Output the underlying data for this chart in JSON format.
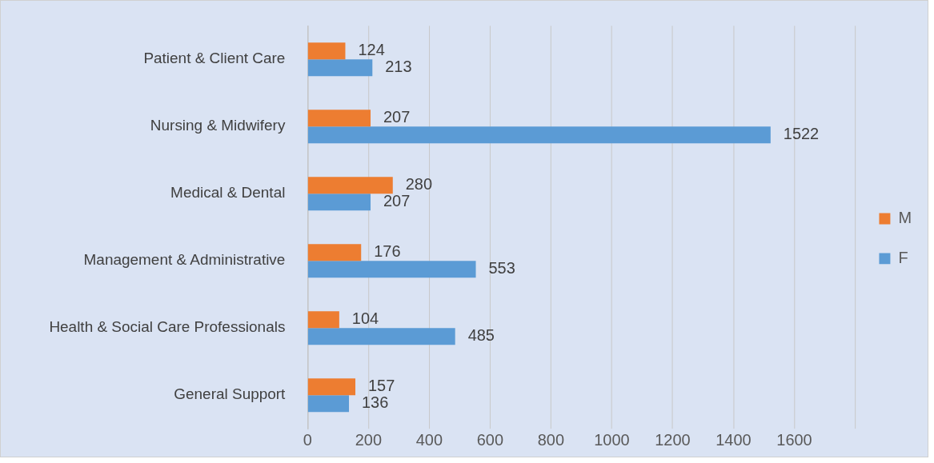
{
  "chart_data": {
    "type": "bar",
    "orientation": "horizontal",
    "categories": [
      "Patient & Client Care",
      "Nursing & Midwifery",
      "Medical & Dental",
      "Management & Administrative",
      "Health & Social Care Professionals",
      "General Support"
    ],
    "series": [
      {
        "name": "M",
        "color": "#ed7d31",
        "values": [
          124,
          207,
          280,
          176,
          104,
          157
        ]
      },
      {
        "name": "F",
        "color": "#5b9bd5",
        "values": [
          213,
          1522,
          207,
          553,
          485,
          136
        ]
      }
    ],
    "xlim": [
      0,
      1800
    ],
    "xticks": [
      0,
      200,
      400,
      600,
      800,
      1000,
      1200,
      1400,
      1600,
      {
        "value": 1800,
        "label": null
      }
    ],
    "grid": "x",
    "legend": "right",
    "data_labels": true
  }
}
